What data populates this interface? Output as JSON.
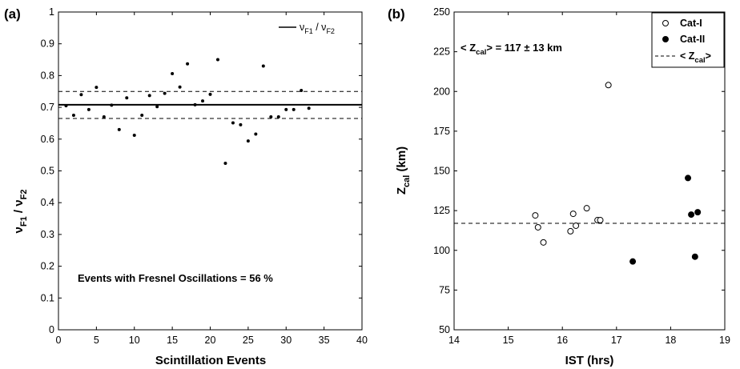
{
  "chart_data": [
    {
      "panel_label": "(a)",
      "type": "scatter",
      "xlabel": "Scintillation Events",
      "ylabel_main": "ν",
      "ylabel_sub1": "F1",
      "ylabel_mid": " / ν",
      "ylabel_sub2": "F2",
      "xlim": [
        0,
        40
      ],
      "ylim": [
        0,
        1
      ],
      "xticks": [
        0,
        5,
        10,
        15,
        20,
        25,
        30,
        35,
        40
      ],
      "yticks": [
        0,
        0.1,
        0.2,
        0.3,
        0.4,
        0.5,
        0.6,
        0.7,
        0.8,
        0.9,
        1
      ],
      "ytick_labels": [
        "0",
        "0.1",
        "0.2",
        "0.3",
        "0.4",
        "0.5",
        "0.6",
        "0.7",
        "0.8",
        "0.9",
        "1"
      ],
      "legend": {
        "main": "ν",
        "sub1": "F1",
        "mid": " / ν",
        "sub2": "F2",
        "position": "top-right"
      },
      "annotation": "Events with Fresnel Oscillations = 56 %",
      "mean_line": 0.708,
      "band_lines": [
        0.665,
        0.75
      ],
      "points": [
        [
          1,
          0.705
        ],
        [
          2,
          0.675
        ],
        [
          3,
          0.74
        ],
        [
          4,
          0.693
        ],
        [
          5,
          0.763
        ],
        [
          6,
          0.67
        ],
        [
          7,
          0.707
        ],
        [
          8,
          0.63
        ],
        [
          9,
          0.73
        ],
        [
          10,
          0.612
        ],
        [
          11,
          0.675
        ],
        [
          12,
          0.737
        ],
        [
          13,
          0.702
        ],
        [
          14,
          0.744
        ],
        [
          15,
          0.806
        ],
        [
          16,
          0.764
        ],
        [
          17,
          0.837
        ],
        [
          18,
          0.708
        ],
        [
          19,
          0.72
        ],
        [
          20,
          0.741
        ],
        [
          21,
          0.85
        ],
        [
          22,
          0.524
        ],
        [
          23,
          0.651
        ],
        [
          24,
          0.645
        ],
        [
          25,
          0.594
        ],
        [
          26,
          0.616
        ],
        [
          27,
          0.83
        ],
        [
          28,
          0.67
        ],
        [
          29,
          0.67
        ],
        [
          30,
          0.693
        ],
        [
          31,
          0.693
        ],
        [
          32,
          0.753
        ],
        [
          33,
          0.697
        ]
      ]
    },
    {
      "panel_label": "(b)",
      "type": "scatter",
      "xlabel": "IST (hrs)",
      "ylabel_main": "Z",
      "ylabel_sub": "cal",
      "ylabel_unit": " (km)",
      "xlim": [
        14,
        19
      ],
      "ylim": [
        50,
        250
      ],
      "xticks": [
        14,
        15,
        16,
        17,
        18,
        19
      ],
      "yticks": [
        50,
        75,
        100,
        125,
        150,
        175,
        200,
        225,
        250
      ],
      "annotation": {
        "pre": "< Z",
        "sub": "cal",
        "post": "> = 117 ± 13 km"
      },
      "mean_line": 117,
      "legend": {
        "position": "top-right",
        "cat1": "Cat-I",
        "cat2": "Cat-II",
        "mean_pre": "< Z",
        "mean_sub": "cal",
        "mean_post": ">"
      },
      "series": [
        {
          "name": "Cat-I",
          "marker": "open-circle",
          "points": [
            [
              15.5,
              122
            ],
            [
              15.55,
              114.5
            ],
            [
              15.65,
              105
            ],
            [
              16.15,
              112
            ],
            [
              16.2,
              123
            ],
            [
              16.25,
              115.5
            ],
            [
              16.45,
              126.5
            ],
            [
              16.65,
              119
            ],
            [
              16.7,
              119
            ],
            [
              16.85,
              204
            ]
          ]
        },
        {
          "name": "Cat-II",
          "marker": "filled-circle",
          "points": [
            [
              17.3,
              93
            ],
            [
              18.32,
              145.5
            ],
            [
              18.38,
              122.5
            ],
            [
              18.45,
              96
            ],
            [
              18.5,
              124
            ]
          ]
        }
      ]
    }
  ],
  "colors": {
    "ink": "#000000",
    "background": "#ffffff"
  }
}
